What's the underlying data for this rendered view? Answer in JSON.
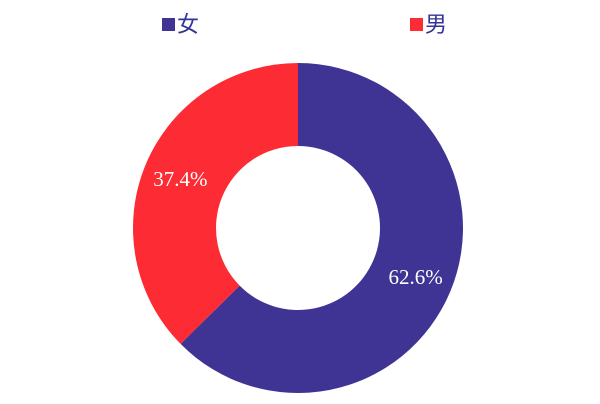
{
  "chart_data": {
    "type": "pie",
    "donut": true,
    "legend_position": "top",
    "categories": [
      "女",
      "男"
    ],
    "values": [
      62.6,
      37.4
    ],
    "labels": [
      "62.6%",
      "37.4%"
    ],
    "colors": [
      "#3f3493",
      "#fc2b34"
    ],
    "title": ""
  }
}
